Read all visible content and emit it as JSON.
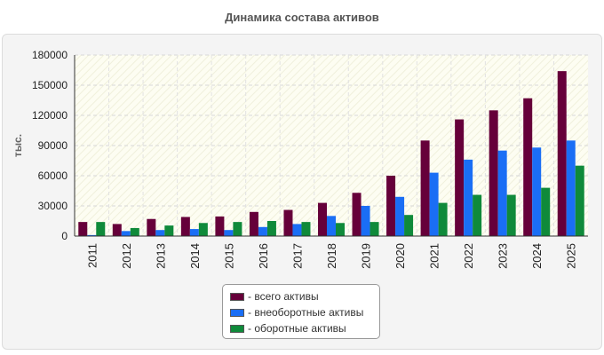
{
  "chart_title": "Динамика состава активов",
  "chart_data": {
    "type": "bar",
    "title": "Динамика состава активов",
    "xlabel": "",
    "ylabel": "тыс.",
    "categories": [
      "2011",
      "2012",
      "2013",
      "2014",
      "2015",
      "2016",
      "2017",
      "2018",
      "2019",
      "2020",
      "2021",
      "2022",
      "2023",
      "2024",
      "2025"
    ],
    "ylim": [
      0,
      180000
    ],
    "yticks": [
      "0",
      "30000",
      "60000",
      "90000",
      "120000",
      "150000",
      "180000"
    ],
    "grid": true,
    "legend_position": "bottom-center",
    "series": [
      {
        "name": "- всего активы",
        "color": "#66003a",
        "values": [
          14000,
          12000,
          17000,
          19000,
          19500,
          24000,
          26000,
          33000,
          43000,
          60000,
          95000,
          116000,
          125000,
          137000,
          164000
        ]
      },
      {
        "name": "- внеоборотные активы",
        "color": "#1a6ef5",
        "values": [
          1000,
          5000,
          6000,
          7000,
          6000,
          9000,
          12000,
          20000,
          30000,
          39000,
          63000,
          76000,
          85000,
          88000,
          95000
        ]
      },
      {
        "name": "- оборотные активы",
        "color": "#0f8a3a",
        "values": [
          14000,
          8000,
          10500,
          13000,
          14000,
          15000,
          14000,
          13000,
          14000,
          21000,
          33000,
          41000,
          41000,
          48000,
          70000
        ]
      }
    ]
  }
}
